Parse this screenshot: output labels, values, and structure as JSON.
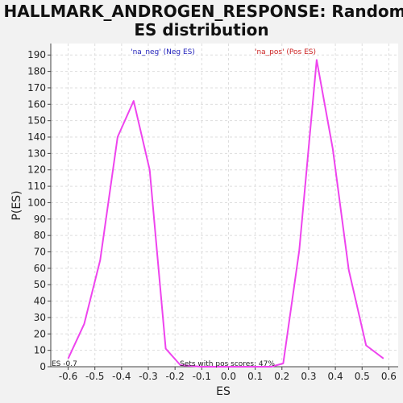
{
  "chart_data": {
    "type": "line",
    "title_line1": "HALLMARK_ANDROGEN_RESPONSE: Random",
    "title_line2": "ES distribution",
    "xlabel": "ES",
    "ylabel": "P(ES)",
    "xlim": [
      -0.665,
      0.635
    ],
    "ylim": [
      0,
      197
    ],
    "xticks": [
      -0.6,
      -0.5,
      -0.4,
      -0.3,
      -0.2,
      -0.1,
      0.0,
      0.1,
      0.2,
      0.3,
      0.4,
      0.5,
      0.6
    ],
    "xtick_labels": [
      "-0.6",
      "-0.5",
      "-0.4",
      "-0.3",
      "-0.2",
      "-0.1",
      "0.0",
      "0.1",
      "0.2",
      "0.3",
      "0.4",
      "0.5",
      "0.6"
    ],
    "yticks": [
      0,
      10,
      20,
      30,
      40,
      50,
      60,
      70,
      80,
      90,
      100,
      110,
      120,
      130,
      140,
      150,
      160,
      170,
      180,
      190
    ],
    "ytick_labels": [
      "0",
      "10",
      "20",
      "30",
      "40",
      "50",
      "60",
      "70",
      "80",
      "90",
      "100",
      "110",
      "120",
      "130",
      "140",
      "150",
      "160",
      "170",
      "180",
      "190"
    ],
    "grid": true,
    "line_color": "#ee44ee",
    "series": [
      {
        "x": [
          -0.6,
          -0.54,
          -0.48,
          -0.415,
          -0.355,
          -0.295,
          -0.235,
          -0.18,
          -0.1,
          0.0,
          0.1,
          0.16,
          0.205,
          0.265,
          0.33,
          0.39,
          0.45,
          0.515,
          0.58
        ],
        "y": [
          5,
          26,
          65,
          140,
          162,
          120,
          11,
          1,
          0,
          0,
          0,
          0,
          2,
          71,
          187,
          133,
          59,
          13,
          5
        ]
      }
    ],
    "annotations": {
      "neg_label": "'na_neg' (Neg ES)",
      "neg_color": "#2222bb",
      "pos_label": "'na_pos' (Pos ES)",
      "pos_color": "#cc2222",
      "pos_scores": "Sets with pos scores: 47%",
      "es_label": "ES -0.7"
    }
  }
}
